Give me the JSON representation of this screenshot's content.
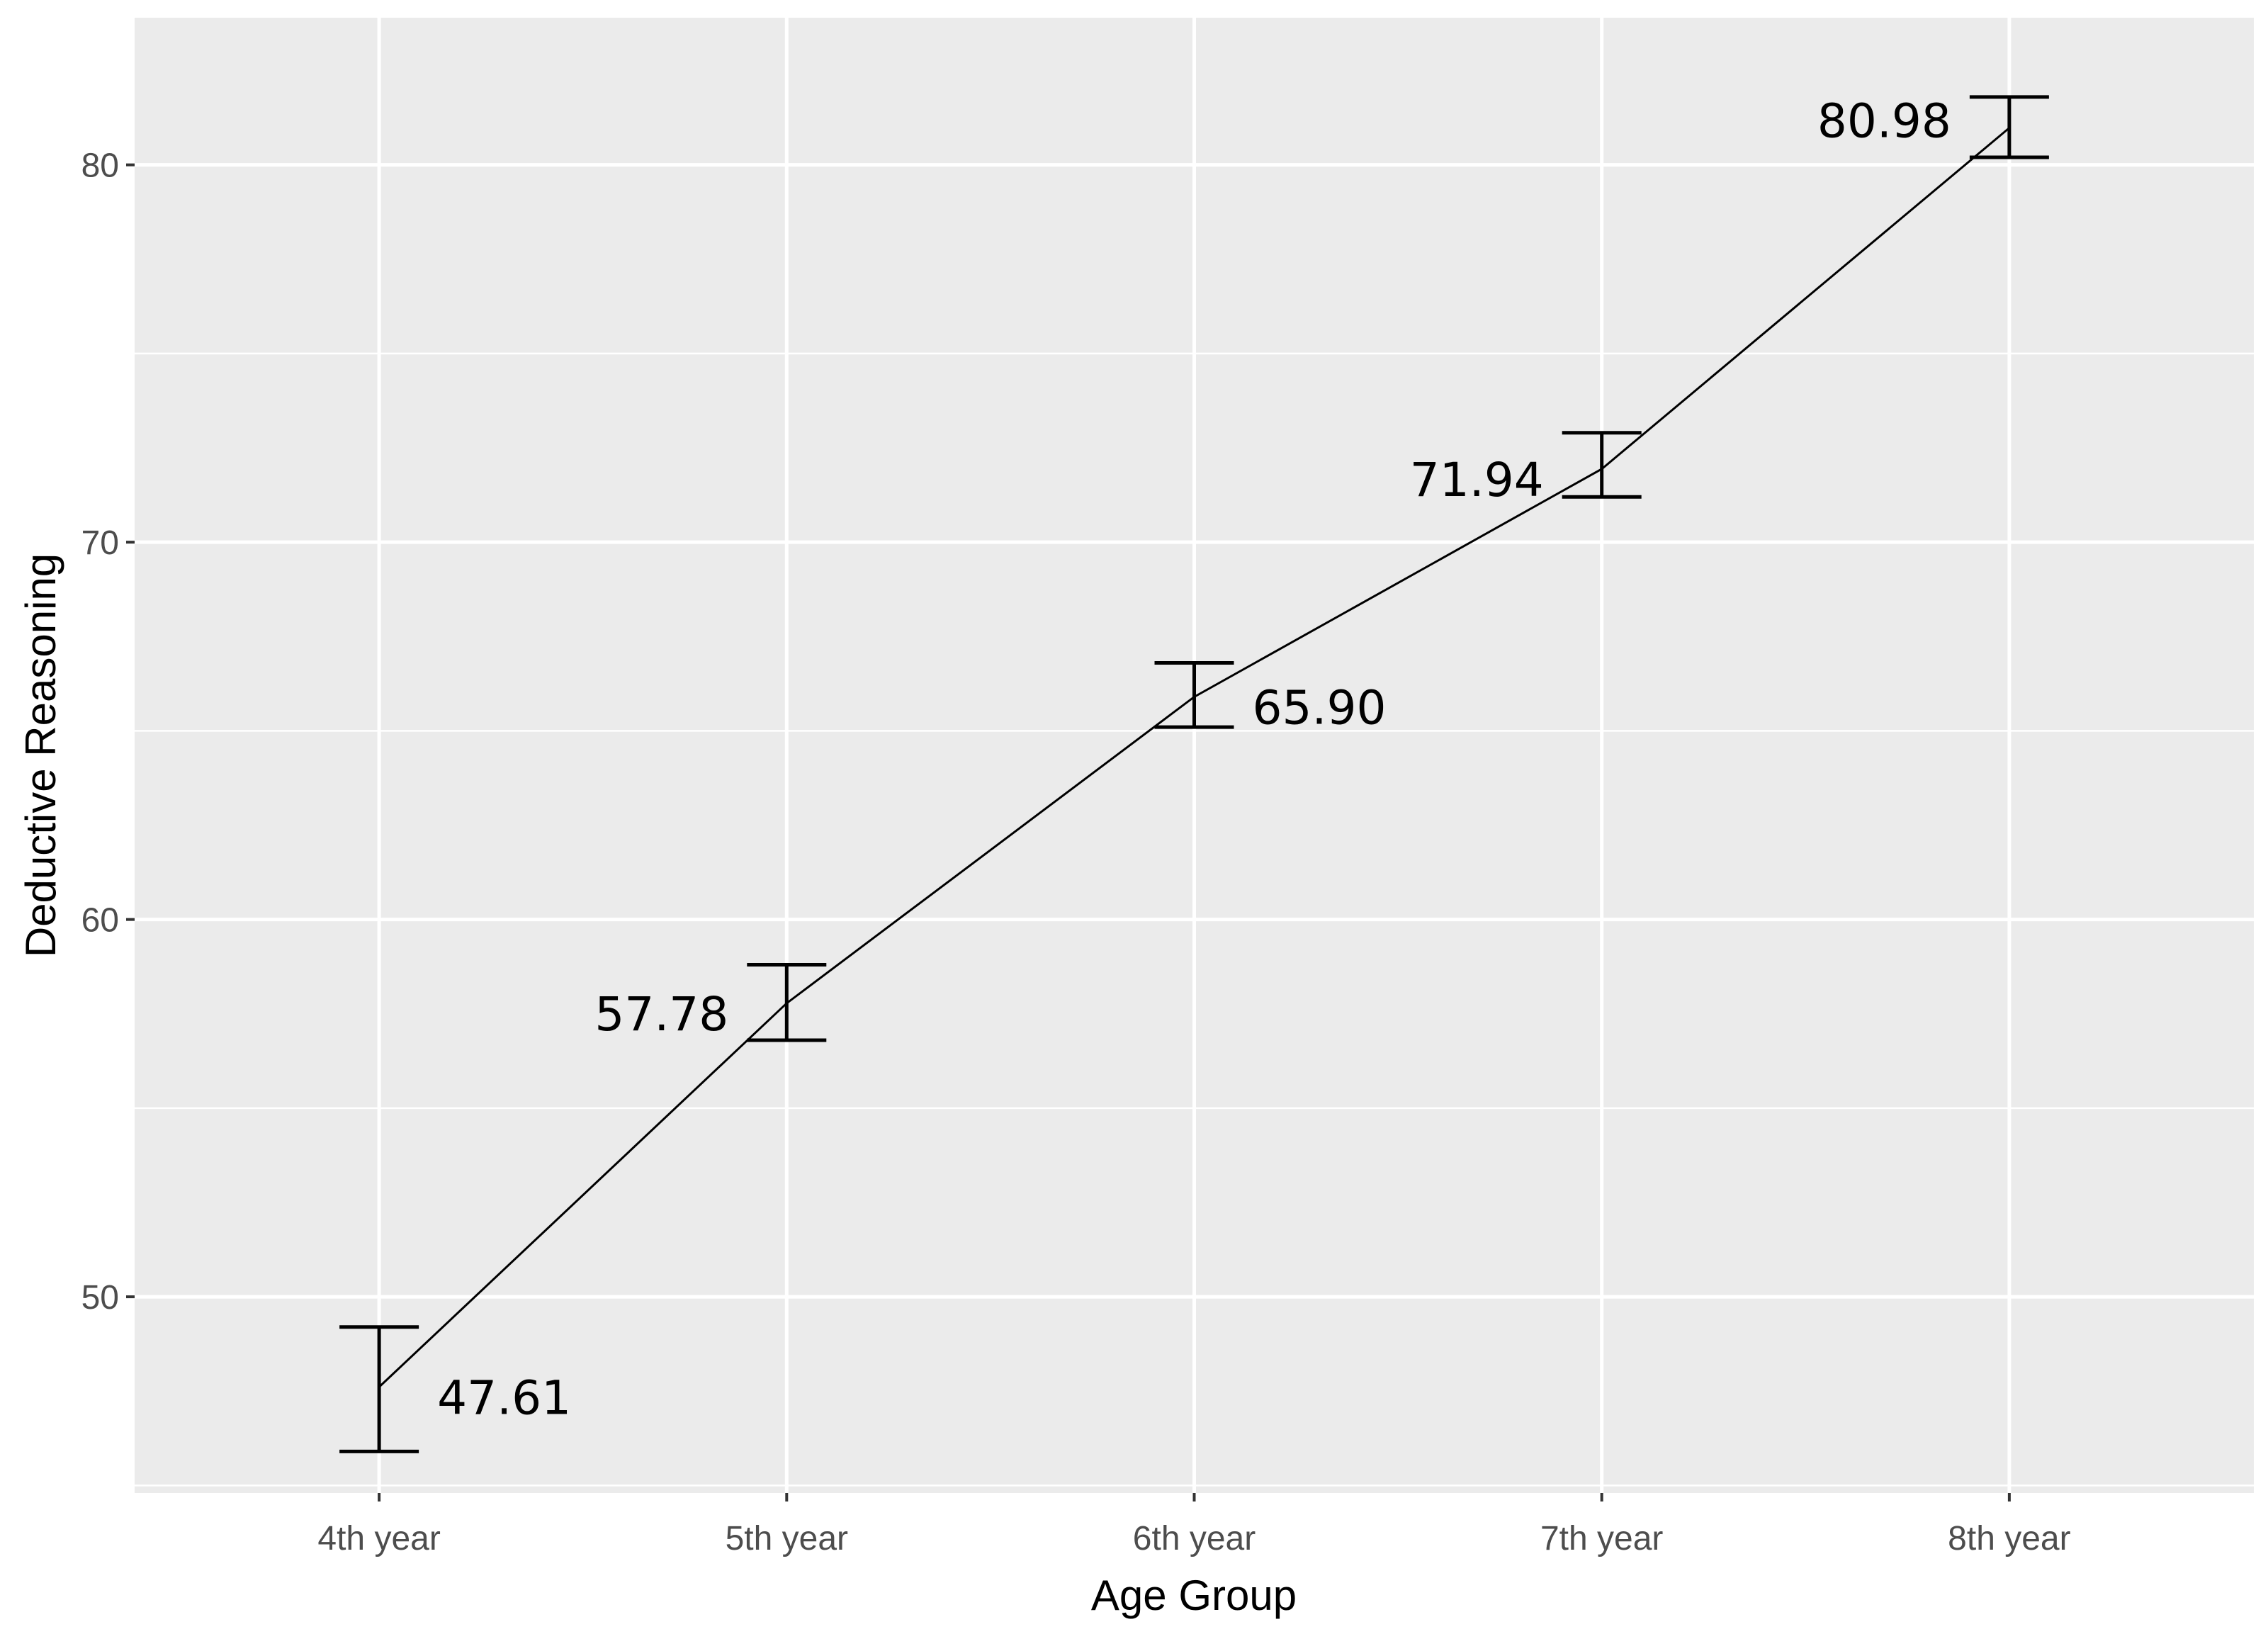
{
  "chart_data": {
    "type": "line",
    "title": "",
    "xlabel": "Age Group",
    "ylabel": "Deductive Reasoning",
    "categories": [
      "4th year",
      "5th year",
      "6th year",
      "7th year",
      "8th year"
    ],
    "values": [
      47.61,
      57.78,
      65.9,
      71.94,
      80.98
    ],
    "value_labels": [
      "47.61",
      "57.78",
      "65.90",
      "71.94",
      "80.98"
    ],
    "error_bars": [
      {
        "low": 45.9,
        "high": 49.2
      },
      {
        "low": 56.8,
        "high": 58.8
      },
      {
        "low": 65.1,
        "high": 66.8
      },
      {
        "low": 71.2,
        "high": 72.9
      },
      {
        "low": 80.2,
        "high": 81.8
      }
    ],
    "yticks": [
      50,
      60,
      70,
      80
    ],
    "ylim": [
      44.8,
      83.9
    ],
    "grid": true,
    "colors": {
      "panel": "#ebebeb",
      "grid": "#ffffff",
      "line": "#000000",
      "tick_text": "#4d4d4d"
    }
  }
}
